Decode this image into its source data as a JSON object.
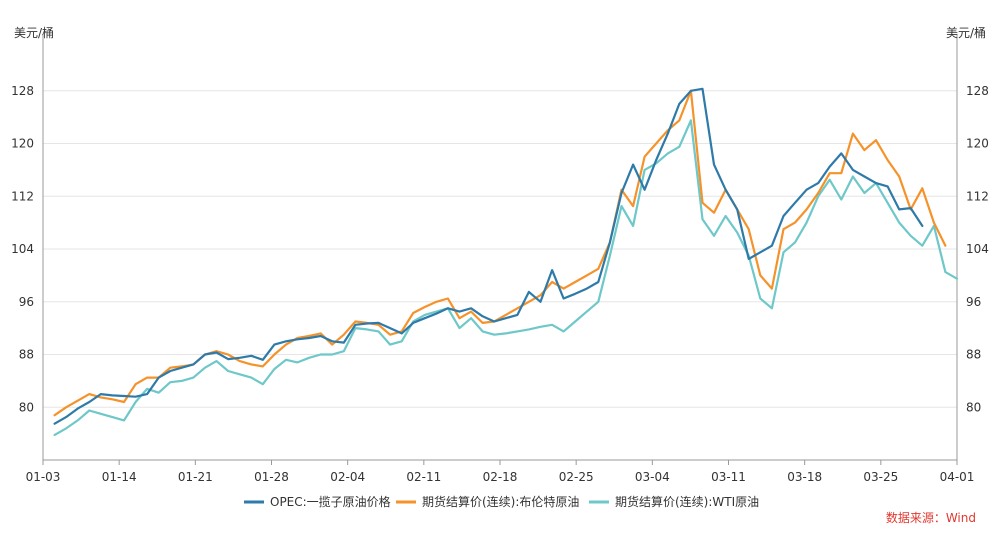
{
  "chart_data": {
    "type": "line",
    "y_unit_left": "美元/桶",
    "y_unit_right": "美元/桶",
    "ylim": [
      72,
      136
    ],
    "y_ticks": [
      80,
      88,
      96,
      104,
      112,
      120,
      128
    ],
    "x_tick_labels": [
      "01-03",
      "01-14",
      "01-21",
      "01-28",
      "02-04",
      "02-11",
      "02-18",
      "02-25",
      "03-04",
      "03-11",
      "03-18",
      "03-25",
      "04-01"
    ],
    "grid": true,
    "legend_position": "bottom",
    "source": "数据来源：Wind",
    "colors": {
      "opec": "#2e7aa8",
      "brent": "#f5922a",
      "wti": "#6ec8c9",
      "axis": "#999999"
    },
    "series": [
      {
        "name": "OPEC:一揽子原油价格",
        "color": "#2e7aa8",
        "points": [
          [
            1,
            77.5
          ],
          [
            2,
            78.5
          ],
          [
            3,
            79.8
          ],
          [
            4,
            80.8
          ],
          [
            5,
            82.0
          ],
          [
            6,
            81.8
          ],
          [
            7,
            81.7
          ],
          [
            8,
            81.6
          ],
          [
            9,
            82.0
          ],
          [
            10,
            84.5
          ],
          [
            11,
            85.5
          ],
          [
            12,
            86.0
          ],
          [
            13,
            86.5
          ],
          [
            14,
            88.0
          ],
          [
            15,
            88.3
          ],
          [
            16,
            87.3
          ],
          [
            17,
            87.5
          ],
          [
            18,
            87.8
          ],
          [
            19,
            87.2
          ],
          [
            20,
            89.5
          ],
          [
            21,
            90.0
          ],
          [
            22,
            90.3
          ],
          [
            23,
            90.5
          ],
          [
            24,
            90.8
          ],
          [
            25,
            90.0
          ],
          [
            26,
            89.8
          ],
          [
            27,
            92.5
          ],
          [
            28,
            92.7
          ],
          [
            29,
            92.8
          ],
          [
            30,
            92.0
          ],
          [
            31,
            91.2
          ],
          [
            32,
            92.8
          ],
          [
            33,
            93.5
          ],
          [
            34,
            94.2
          ],
          [
            35,
            95.0
          ],
          [
            36,
            94.5
          ],
          [
            37,
            95.0
          ],
          [
            38,
            93.8
          ],
          [
            39,
            93.0
          ],
          [
            40,
            93.5
          ],
          [
            41,
            94.0
          ],
          [
            42,
            97.5
          ],
          [
            43,
            96.0
          ],
          [
            44,
            100.8
          ],
          [
            45,
            96.5
          ],
          [
            46,
            97.2
          ],
          [
            47,
            98.0
          ],
          [
            48,
            99.0
          ],
          [
            49,
            105.0
          ],
          [
            50,
            112.5
          ],
          [
            51,
            116.8
          ],
          [
            52,
            113.0
          ],
          [
            53,
            117.5
          ],
          [
            54,
            121.5
          ],
          [
            55,
            126.0
          ],
          [
            56,
            128.0
          ],
          [
            57,
            128.3
          ],
          [
            58,
            116.8
          ],
          [
            59,
            113.0
          ],
          [
            60,
            110.0
          ],
          [
            61,
            102.5
          ],
          [
            62,
            103.5
          ],
          [
            63,
            104.5
          ],
          [
            64,
            109.0
          ],
          [
            65,
            111.0
          ],
          [
            66,
            113.0
          ],
          [
            67,
            114.0
          ],
          [
            68,
            116.5
          ],
          [
            69,
            118.5
          ],
          [
            70,
            116.0
          ],
          [
            71,
            115.0
          ],
          [
            72,
            114.0
          ],
          [
            73,
            113.5
          ],
          [
            74,
            110.0
          ],
          [
            75,
            110.2
          ],
          [
            76,
            107.5
          ]
        ]
      },
      {
        "name": "期货结算价(连续):布伦特原油",
        "color": "#f5922a",
        "points": [
          [
            1,
            78.8
          ],
          [
            2,
            80.0
          ],
          [
            3,
            81.0
          ],
          [
            4,
            82.0
          ],
          [
            5,
            81.5
          ],
          [
            6,
            81.2
          ],
          [
            7,
            80.8
          ],
          [
            8,
            83.5
          ],
          [
            9,
            84.5
          ],
          [
            10,
            84.5
          ],
          [
            11,
            86.0
          ],
          [
            12,
            86.2
          ],
          [
            13,
            86.5
          ],
          [
            14,
            88.0
          ],
          [
            15,
            88.5
          ],
          [
            16,
            88.0
          ],
          [
            17,
            87.0
          ],
          [
            18,
            86.5
          ],
          [
            19,
            86.2
          ],
          [
            20,
            88.0
          ],
          [
            21,
            89.5
          ],
          [
            22,
            90.5
          ],
          [
            23,
            90.8
          ],
          [
            24,
            91.2
          ],
          [
            25,
            89.5
          ],
          [
            26,
            91.0
          ],
          [
            27,
            93.0
          ],
          [
            28,
            92.8
          ],
          [
            29,
            92.5
          ],
          [
            30,
            91.0
          ],
          [
            31,
            91.5
          ],
          [
            32,
            94.3
          ],
          [
            33,
            95.2
          ],
          [
            34,
            96.0
          ],
          [
            35,
            96.5
          ],
          [
            36,
            93.5
          ],
          [
            37,
            94.5
          ],
          [
            38,
            92.8
          ],
          [
            39,
            93.0
          ],
          [
            40,
            94.0
          ],
          [
            41,
            95.0
          ],
          [
            42,
            96.0
          ],
          [
            43,
            97.0
          ],
          [
            44,
            99.0
          ],
          [
            45,
            98.0
          ],
          [
            46,
            99.0
          ],
          [
            47,
            100.0
          ],
          [
            48,
            101.0
          ],
          [
            49,
            105.0
          ],
          [
            50,
            113.0
          ],
          [
            51,
            110.5
          ],
          [
            52,
            118.0
          ],
          [
            53,
            120.0
          ],
          [
            54,
            122.0
          ],
          [
            55,
            123.5
          ],
          [
            56,
            128.0
          ],
          [
            57,
            111.0
          ],
          [
            58,
            109.5
          ],
          [
            59,
            113.0
          ],
          [
            60,
            110.0
          ],
          [
            61,
            107.0
          ],
          [
            62,
            100.0
          ],
          [
            63,
            98.0
          ],
          [
            64,
            107.0
          ],
          [
            65,
            108.0
          ],
          [
            66,
            110.0
          ],
          [
            67,
            112.5
          ],
          [
            68,
            115.5
          ],
          [
            69,
            115.5
          ],
          [
            70,
            121.5
          ],
          [
            71,
            119.0
          ],
          [
            72,
            120.5
          ],
          [
            73,
            117.5
          ],
          [
            74,
            115.0
          ],
          [
            75,
            110.0
          ],
          [
            76,
            113.2
          ],
          [
            77,
            108.0
          ],
          [
            78,
            104.5
          ]
        ]
      },
      {
        "name": "期货结算价(连续):WTI原油",
        "color": "#6ec8c9",
        "points": [
          [
            1,
            75.8
          ],
          [
            2,
            76.8
          ],
          [
            3,
            78.0
          ],
          [
            4,
            79.5
          ],
          [
            5,
            79.0
          ],
          [
            6,
            78.5
          ],
          [
            7,
            78.0
          ],
          [
            8,
            80.8
          ],
          [
            9,
            82.8
          ],
          [
            10,
            82.2
          ],
          [
            11,
            83.8
          ],
          [
            12,
            84.0
          ],
          [
            13,
            84.5
          ],
          [
            14,
            86.0
          ],
          [
            15,
            87.0
          ],
          [
            16,
            85.5
          ],
          [
            17,
            85.0
          ],
          [
            18,
            84.5
          ],
          [
            19,
            83.5
          ],
          [
            20,
            85.8
          ],
          [
            21,
            87.2
          ],
          [
            22,
            86.8
          ],
          [
            23,
            87.5
          ],
          [
            24,
            88.0
          ],
          [
            25,
            88.0
          ],
          [
            26,
            88.5
          ],
          [
            27,
            92.0
          ],
          [
            28,
            91.8
          ],
          [
            29,
            91.5
          ],
          [
            30,
            89.5
          ],
          [
            31,
            90.0
          ],
          [
            32,
            93.0
          ],
          [
            33,
            94.0
          ],
          [
            34,
            94.5
          ],
          [
            35,
            95.0
          ],
          [
            36,
            92.0
          ],
          [
            37,
            93.5
          ],
          [
            38,
            91.5
          ],
          [
            39,
            91.0
          ],
          [
            40,
            91.2
          ],
          [
            41,
            91.5
          ],
          [
            42,
            91.8
          ],
          [
            43,
            92.2
          ],
          [
            44,
            92.5
          ],
          [
            45,
            91.5
          ],
          [
            46,
            93.0
          ],
          [
            47,
            94.5
          ],
          [
            48,
            96.0
          ],
          [
            49,
            103.0
          ],
          [
            50,
            110.5
          ],
          [
            51,
            107.5
          ],
          [
            52,
            116.0
          ],
          [
            53,
            117.0
          ],
          [
            54,
            118.5
          ],
          [
            55,
            119.5
          ],
          [
            56,
            123.5
          ],
          [
            57,
            108.5
          ],
          [
            58,
            106.0
          ],
          [
            59,
            109.0
          ],
          [
            60,
            106.5
          ],
          [
            61,
            103.0
          ],
          [
            62,
            96.5
          ],
          [
            63,
            95.0
          ],
          [
            64,
            103.5
          ],
          [
            65,
            105.0
          ],
          [
            66,
            108.0
          ],
          [
            67,
            112.0
          ],
          [
            68,
            114.5
          ],
          [
            69,
            111.5
          ],
          [
            70,
            115.0
          ],
          [
            71,
            112.5
          ],
          [
            72,
            114.0
          ],
          [
            73,
            111.0
          ],
          [
            74,
            108.0
          ],
          [
            75,
            106.0
          ],
          [
            76,
            104.5
          ],
          [
            77,
            107.5
          ],
          [
            78,
            100.5
          ],
          [
            79,
            99.5
          ]
        ]
      }
    ]
  }
}
